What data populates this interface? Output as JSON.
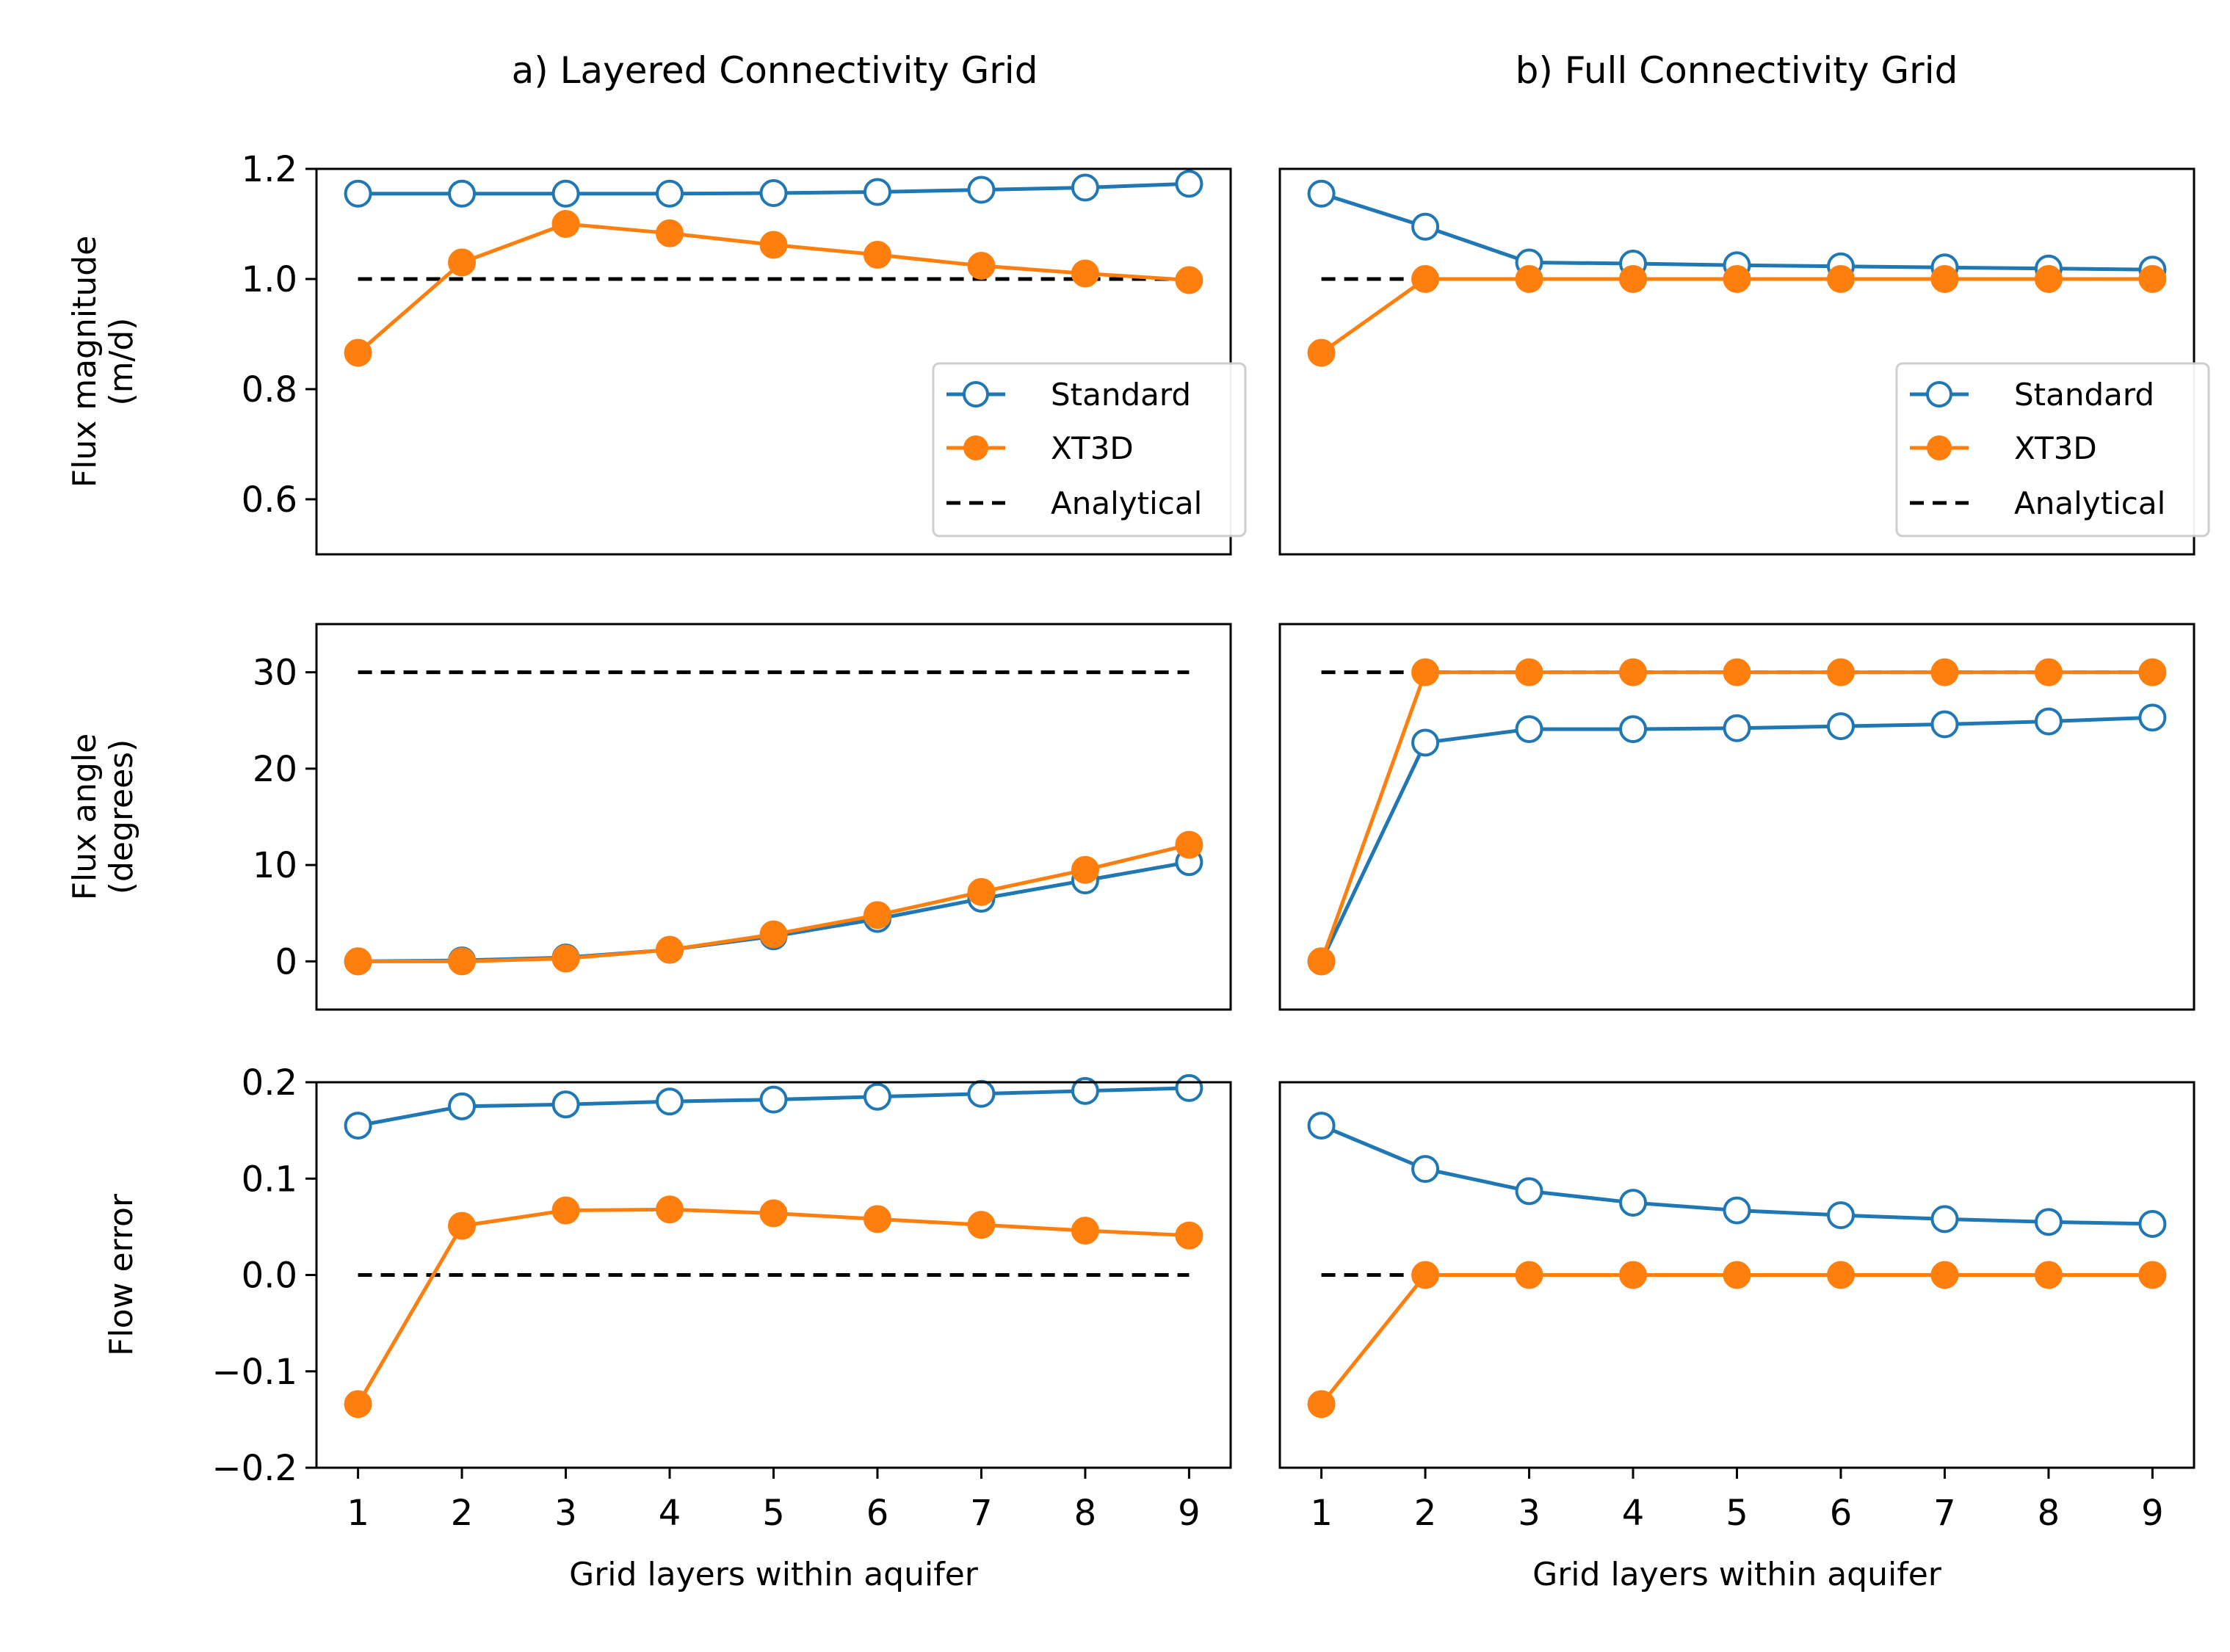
{
  "columns": [
    {
      "title": "a) Layered Connectivity Grid"
    },
    {
      "title": "b) Full Connectivity Grid"
    }
  ],
  "rows": [
    {
      "ylabel": [
        "Flux magnitude",
        "(m/d)"
      ],
      "ylim": [
        0.5,
        1.2
      ],
      "yticks": [
        0.6,
        0.8,
        1.0,
        1.2
      ],
      "ytick_labels": [
        "0.6",
        "0.8",
        "1.0",
        "1.2"
      ]
    },
    {
      "ylabel": [
        "Flux angle",
        "(degrees)"
      ],
      "ylim": [
        -5,
        35
      ],
      "yticks": [
        0,
        10,
        20,
        30
      ],
      "ytick_labels": [
        "0",
        "10",
        "20",
        "30"
      ]
    },
    {
      "ylabel": [
        "Flow error"
      ],
      "ylim": [
        -0.2,
        0.2
      ],
      "yticks": [
        -0.2,
        -0.1,
        0.0,
        0.1,
        0.2
      ],
      "ytick_labels": [
        "−0.2",
        "−0.1",
        "0.0",
        "0.1",
        "0.2"
      ]
    }
  ],
  "xlabel": "Grid layers within aquifer",
  "xlim": [
    0.6,
    9.4
  ],
  "x": [
    1,
    2,
    3,
    4,
    5,
    6,
    7,
    8,
    9
  ],
  "xtick_labels": [
    "1",
    "2",
    "3",
    "4",
    "5",
    "6",
    "7",
    "8",
    "9"
  ],
  "legend": {
    "placement": "lower right",
    "entries": [
      "Standard",
      "XT3D",
      "Analytical"
    ]
  },
  "colors": {
    "standard": "#1f77b4",
    "xt3d": "#ff7f0e",
    "analytical": "#000000"
  },
  "chart_data": [
    {
      "type": "line",
      "title": "a) Layered Connectivity Grid",
      "ylabel": "Flux magnitude (m/d)",
      "xlabel": "",
      "ylim": [
        0.5,
        1.2
      ],
      "x": [
        1,
        2,
        3,
        4,
        5,
        6,
        7,
        8,
        9
      ],
      "legend": "lower right",
      "series": [
        {
          "name": "Standard",
          "values": [
            1.155,
            1.155,
            1.155,
            1.155,
            1.156,
            1.158,
            1.162,
            1.166,
            1.173
          ]
        },
        {
          "name": "XT3D",
          "values": [
            0.866,
            1.03,
            1.1,
            1.083,
            1.062,
            1.044,
            1.024,
            1.01,
            0.998
          ]
        },
        {
          "name": "Analytical",
          "values": [
            1.0,
            1.0,
            1.0,
            1.0,
            1.0,
            1.0,
            1.0,
            1.0,
            1.0
          ]
        }
      ]
    },
    {
      "type": "line",
      "title": "b) Full Connectivity Grid",
      "ylabel": "",
      "xlabel": "",
      "ylim": [
        0.5,
        1.2
      ],
      "x": [
        1,
        2,
        3,
        4,
        5,
        6,
        7,
        8,
        9
      ],
      "legend": "lower right",
      "series": [
        {
          "name": "Standard",
          "values": [
            1.155,
            1.095,
            1.03,
            1.028,
            1.025,
            1.023,
            1.021,
            1.019,
            1.017
          ]
        },
        {
          "name": "XT3D",
          "values": [
            0.866,
            1.0,
            1.0,
            1.0,
            1.0,
            1.0,
            1.0,
            1.0,
            1.0
          ]
        },
        {
          "name": "Analytical",
          "values": [
            1.0,
            1.0,
            1.0,
            1.0,
            1.0,
            1.0,
            1.0,
            1.0,
            1.0
          ]
        }
      ]
    },
    {
      "type": "line",
      "title": "",
      "ylabel": "Flux angle (degrees)",
      "xlabel": "",
      "ylim": [
        -5,
        35
      ],
      "x": [
        1,
        2,
        3,
        4,
        5,
        6,
        7,
        8,
        9
      ],
      "series": [
        {
          "name": "Standard",
          "values": [
            0.0,
            0.1,
            0.4,
            1.2,
            2.6,
            4.4,
            6.5,
            8.4,
            10.3
          ]
        },
        {
          "name": "XT3D",
          "values": [
            0.0,
            0.0,
            0.3,
            1.2,
            2.8,
            4.8,
            7.2,
            9.5,
            12.1
          ]
        },
        {
          "name": "Analytical",
          "values": [
            30,
            30,
            30,
            30,
            30,
            30,
            30,
            30,
            30
          ]
        }
      ]
    },
    {
      "type": "line",
      "title": "",
      "ylabel": "",
      "xlabel": "",
      "ylim": [
        -5,
        35
      ],
      "x": [
        1,
        2,
        3,
        4,
        5,
        6,
        7,
        8,
        9
      ],
      "series": [
        {
          "name": "Standard",
          "values": [
            0.0,
            22.7,
            24.1,
            24.1,
            24.2,
            24.4,
            24.6,
            24.9,
            25.3
          ]
        },
        {
          "name": "XT3D",
          "values": [
            0.0,
            30.0,
            30.0,
            30.0,
            30.0,
            30.0,
            30.0,
            30.0,
            30.0
          ]
        },
        {
          "name": "Analytical",
          "values": [
            30,
            30,
            30,
            30,
            30,
            30,
            30,
            30,
            30
          ]
        }
      ]
    },
    {
      "type": "line",
      "title": "",
      "ylabel": "Flow error",
      "xlabel": "Grid layers within aquifer",
      "ylim": [
        -0.2,
        0.2
      ],
      "x": [
        1,
        2,
        3,
        4,
        5,
        6,
        7,
        8,
        9
      ],
      "series": [
        {
          "name": "Standard",
          "values": [
            0.155,
            0.175,
            0.177,
            0.18,
            0.182,
            0.185,
            0.188,
            0.191,
            0.194
          ]
        },
        {
          "name": "XT3D",
          "values": [
            -0.134,
            0.051,
            0.067,
            0.068,
            0.064,
            0.058,
            0.052,
            0.046,
            0.041
          ]
        },
        {
          "name": "Analytical",
          "values": [
            0,
            0,
            0,
            0,
            0,
            0,
            0,
            0,
            0
          ]
        }
      ]
    },
    {
      "type": "line",
      "title": "",
      "ylabel": "",
      "xlabel": "Grid layers within aquifer",
      "ylim": [
        -0.2,
        0.2
      ],
      "x": [
        1,
        2,
        3,
        4,
        5,
        6,
        7,
        8,
        9
      ],
      "series": [
        {
          "name": "Standard",
          "values": [
            0.155,
            0.11,
            0.087,
            0.075,
            0.067,
            0.062,
            0.058,
            0.055,
            0.053
          ]
        },
        {
          "name": "XT3D",
          "values": [
            -0.134,
            0.0,
            0.0,
            0.0,
            0.0,
            0.0,
            0.0,
            0.0,
            0.0
          ]
        },
        {
          "name": "Analytical",
          "values": [
            0,
            0,
            0,
            0,
            0,
            0,
            0,
            0,
            0
          ]
        }
      ]
    }
  ]
}
